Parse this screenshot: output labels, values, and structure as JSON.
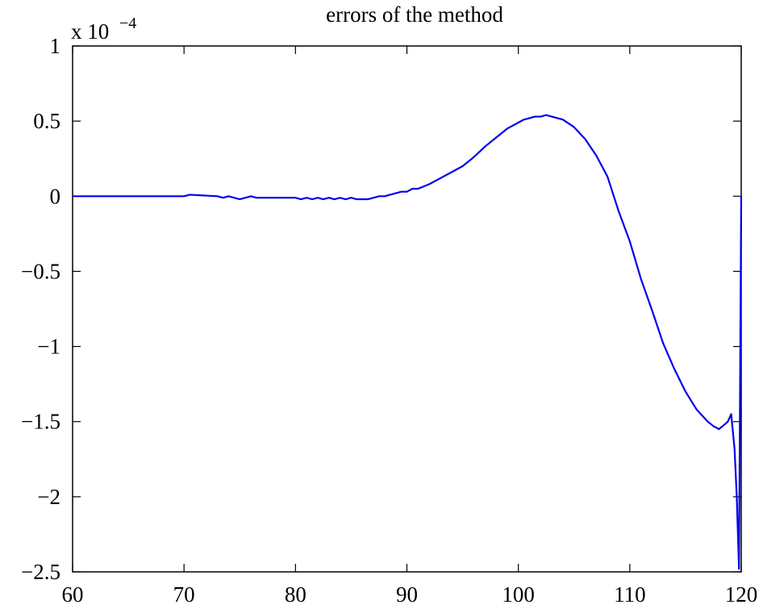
{
  "chart_data": {
    "type": "line",
    "title": "errors of the method",
    "xlabel": "",
    "ylabel": "",
    "y_multiplier": {
      "base": "x 10",
      "exponent": "−4"
    },
    "xlim": [
      60,
      120
    ],
    "ylim": [
      -2.5,
      1
    ],
    "grid": false,
    "legend": "none",
    "x_ticks": [
      60,
      70,
      80,
      90,
      100,
      110,
      120
    ],
    "x_tick_labels": [
      "60",
      "70",
      "80",
      "90",
      "100",
      "110",
      "120"
    ],
    "y_ticks": [
      1,
      0.5,
      0,
      -0.5,
      -1,
      -1.5,
      -2,
      -2.5
    ],
    "y_tick_labels": [
      "1",
      "0.5",
      "0",
      "−0.5",
      "−1",
      "−1.5",
      "−2",
      "−2.5"
    ],
    "line_color": "#0000ee",
    "series": [
      {
        "x": [
          60,
          70,
          70.5,
          73,
          73.5,
          74,
          74.5,
          75,
          75.5,
          76,
          76.5,
          80,
          80.5,
          81,
          81.5,
          82,
          82.5,
          83,
          83.5,
          84,
          84.5,
          85,
          85.5,
          86,
          86.5,
          87,
          87.5,
          88,
          88.5,
          89,
          89.5,
          90,
          90.5,
          91,
          92,
          93,
          94,
          95,
          96,
          97,
          98,
          99,
          100,
          100.5,
          101,
          101.5,
          102,
          102.5,
          103,
          103.5,
          104,
          105,
          106,
          107,
          108,
          109,
          110,
          111,
          112,
          113,
          114,
          115,
          116,
          117,
          117.5,
          118,
          118.5,
          118.8,
          119.1,
          119.4,
          119.6,
          119.8,
          120
        ],
        "y": [
          0,
          0,
          0.01,
          0,
          -0.01,
          0,
          -0.01,
          -0.02,
          -0.01,
          0,
          -0.01,
          -0.01,
          -0.02,
          -0.01,
          -0.02,
          -0.01,
          -0.02,
          -0.01,
          -0.02,
          -0.01,
          -0.02,
          -0.01,
          -0.02,
          -0.02,
          -0.02,
          -0.01,
          0,
          0,
          0.01,
          0.02,
          0.03,
          0.03,
          0.05,
          0.05,
          0.08,
          0.12,
          0.16,
          0.2,
          0.26,
          0.33,
          0.39,
          0.45,
          0.49,
          0.51,
          0.52,
          0.53,
          0.53,
          0.54,
          0.53,
          0.52,
          0.51,
          0.46,
          0.38,
          0.27,
          0.13,
          -0.1,
          -0.3,
          -0.55,
          -0.76,
          -0.98,
          -1.15,
          -1.3,
          -1.42,
          -1.5,
          -1.53,
          -1.55,
          -1.52,
          -1.5,
          -1.45,
          -1.68,
          -2.0,
          -2.48,
          0
        ]
      }
    ]
  }
}
